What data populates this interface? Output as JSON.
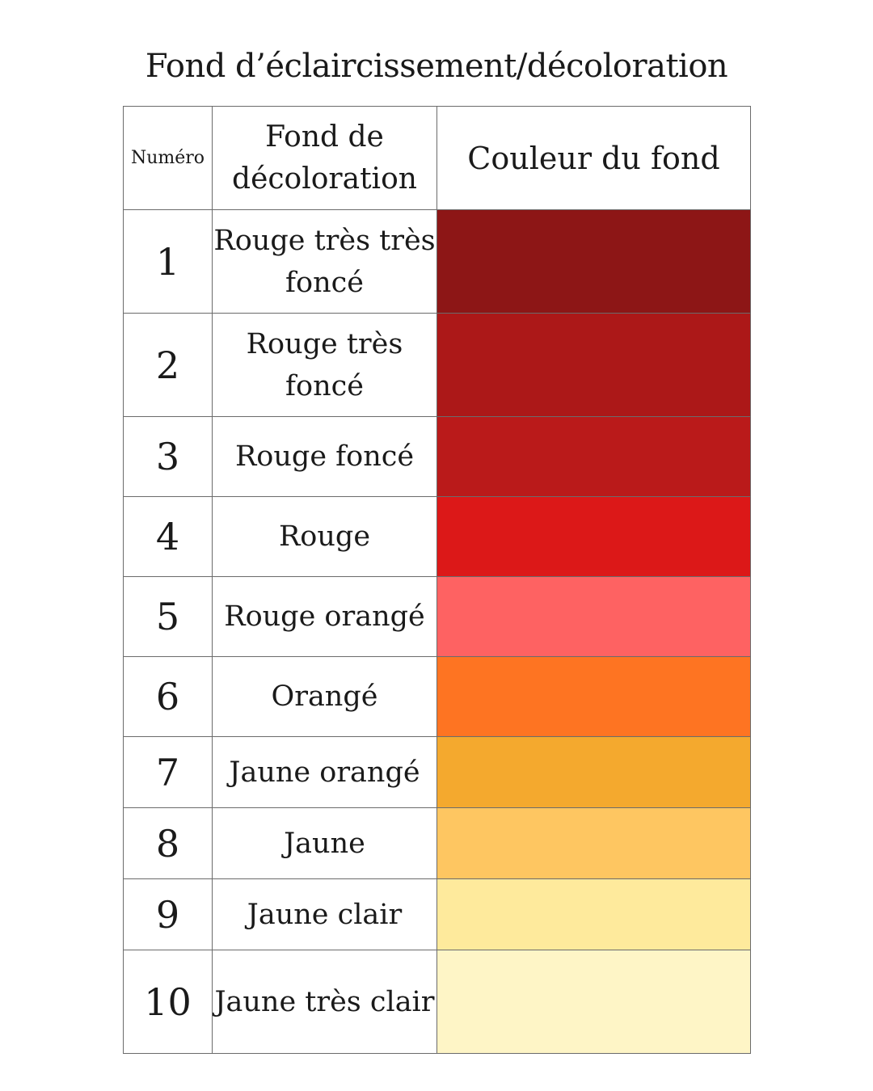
{
  "title": "Fond d’éclaircissement/décoloration",
  "headers": {
    "number": "Numéro",
    "background": "Fond de décoloration",
    "color": "Couleur du fond"
  },
  "rows": [
    {
      "number": "1",
      "name": "Rouge très très foncé",
      "color": "#8d1616"
    },
    {
      "number": "2",
      "name": "Rouge très foncé",
      "color": "#ac1818"
    },
    {
      "number": "3",
      "name": "Rouge foncé",
      "color": "#ba1a1a"
    },
    {
      "number": "4",
      "name": "Rouge",
      "color": "#dc1818"
    },
    {
      "number": "5",
      "name": "Rouge orangé",
      "color": "#fe6262"
    },
    {
      "number": "6",
      "name": "Orangé",
      "color": "#fe7422"
    },
    {
      "number": "7",
      "name": "Jaune orangé",
      "color": "#f4a92e"
    },
    {
      "number": "8",
      "name": "Jaune",
      "color": "#fec661"
    },
    {
      "number": "9",
      "name": "Jaune clair",
      "color": "#feea9c"
    },
    {
      "number": "10",
      "name": "Jaune très clair",
      "color": "#fef5c6"
    }
  ]
}
